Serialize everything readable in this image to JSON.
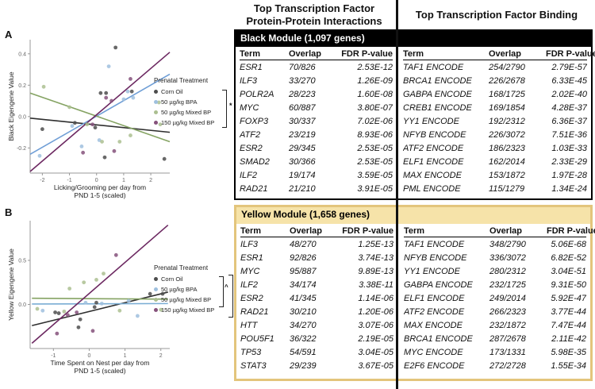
{
  "panels": [
    {
      "label": "A"
    },
    {
      "label": "B"
    }
  ],
  "section_headers": {
    "ppi_line1": "Top Transcription Factor",
    "ppi_line2": "Protein-Protein Interactions",
    "binding": "Top Transcription Factor Binding"
  },
  "modules": [
    {
      "title": "Black Module (1,097 genes)",
      "accent_color": "#000000",
      "ppi": {
        "columns": [
          "Term",
          "Overlap",
          "FDR P-value"
        ],
        "rows": [
          [
            "ESR1",
            "70/826",
            "2.53E-12"
          ],
          [
            "ILF3",
            "33/270",
            "1.26E-09"
          ],
          [
            "POLR2A",
            "28/223",
            "1.60E-08"
          ],
          [
            "MYC",
            "60/887",
            "3.80E-07"
          ],
          [
            "FOXP3",
            "30/337",
            "7.02E-06"
          ],
          [
            "ATF2",
            "23/219",
            "8.93E-06"
          ],
          [
            "ESR2",
            "29/345",
            "2.53E-05"
          ],
          [
            "SMAD2",
            "30/366",
            "2.53E-05"
          ],
          [
            "ILF2",
            "19/174",
            "3.59E-05"
          ],
          [
            "RAD21",
            "21/210",
            "3.91E-05"
          ]
        ]
      },
      "binding": {
        "columns": [
          "Term",
          "Overlap",
          "FDR P-value"
        ],
        "rows": [
          [
            "TAF1 ENCODE",
            "254/2790",
            "2.79E-57"
          ],
          [
            "BRCA1 ENCODE",
            "226/2678",
            "6.33E-45"
          ],
          [
            "GABPA ENCODE",
            "168/1725",
            "2.02E-40"
          ],
          [
            "CREB1 ENCODE",
            "169/1854",
            "4.28E-37"
          ],
          [
            "YY1 ENCODE",
            "192/2312",
            "6.36E-37"
          ],
          [
            "NFYB ENCODE",
            "226/3072",
            "7.51E-36"
          ],
          [
            "ATF2 ENCODE",
            "186/2323",
            "1.03E-33"
          ],
          [
            "ELF1 ENCODE",
            "162/2014",
            "2.33E-29"
          ],
          [
            "MAX ENCODE",
            "153/1872",
            "1.97E-28"
          ],
          [
            "PML ENCODE",
            "115/1279",
            "1.34E-24"
          ]
        ]
      }
    },
    {
      "title": "Yellow Module (1,658 genes)",
      "accent_color": "#e3c57c",
      "header_bg": "#f6e3a9",
      "ppi": {
        "columns": [
          "Term",
          "Overlap",
          "FDR P-value"
        ],
        "rows": [
          [
            "ILF3",
            "48/270",
            "1.25E-13"
          ],
          [
            "ESR1",
            "92/826",
            "3.74E-13"
          ],
          [
            "MYC",
            "95/887",
            "9.89E-13"
          ],
          [
            "ILF2",
            "34/174",
            "3.38E-11"
          ],
          [
            "ESR2",
            "41/345",
            "1.14E-06"
          ],
          [
            "RAD21",
            "30/210",
            "1.20E-06"
          ],
          [
            "HTT",
            "34/270",
            "3.07E-06"
          ],
          [
            "POU5F1",
            "36/322",
            "2.19E-05"
          ],
          [
            "TP53",
            "54/591",
            "3.04E-05"
          ],
          [
            "STAT3",
            "29/239",
            "3.67E-05"
          ]
        ]
      },
      "binding": {
        "columns": [
          "Term",
          "Overlap",
          "FDR P-value"
        ],
        "rows": [
          [
            "TAF1 ENCODE",
            "348/2790",
            "5.06E-68"
          ],
          [
            "NFYB ENCODE",
            "336/3072",
            "6.82E-52"
          ],
          [
            "YY1 ENCODE",
            "280/2312",
            "3.04E-51"
          ],
          [
            "GABPA ENCODE",
            "232/1725",
            "9.31E-50"
          ],
          [
            "ELF1 ENCODE",
            "249/2014",
            "5.92E-47"
          ],
          [
            "ATF2 ENCODE",
            "266/2323",
            "3.77E-44"
          ],
          [
            "MAX ENCODE",
            "232/1872",
            "7.47E-44"
          ],
          [
            "BRCA1 ENCODE",
            "287/2678",
            "2.11E-42"
          ],
          [
            "MYC ENCODE",
            "173/1331",
            "5.98E-35"
          ],
          [
            "E2F6 ENCODE",
            "272/2728",
            "1.55E-34"
          ]
        ]
      }
    }
  ],
  "chart_data": [
    {
      "type": "scatter",
      "panel": "A",
      "ylabel": "Black Eigengene Value",
      "xlabel_lines": [
        "Licking/Grooming per day from",
        "PND 1-5 (scaled)"
      ],
      "xlim": [
        -2.45,
        2.7
      ],
      "ylim": [
        -0.36,
        0.49
      ],
      "xticks": [
        {
          "v": -2,
          "t": "-2"
        },
        {
          "v": -1,
          "t": "-1"
        },
        {
          "v": 0,
          "t": "0"
        },
        {
          "v": 1,
          "t": "1"
        },
        {
          "v": 2,
          "t": "2"
        }
      ],
      "yticks": [
        {
          "v": -0.2,
          "t": "-0.2"
        },
        {
          "v": 0,
          "t": "0.0"
        },
        {
          "v": 0.2,
          "t": "0.2"
        },
        {
          "v": 0.4,
          "t": "0.4"
        }
      ],
      "legend_title": "Prenatal Treatment",
      "legend_position": "right",
      "grid": false,
      "series": [
        {
          "name": "Corn Oil",
          "color": "#4d4d4d",
          "line_color": "#2e2e2e",
          "trend": [
            [
              -2.45,
              -0.01
            ],
            [
              2.7,
              -0.1
            ]
          ],
          "points": [
            [
              0.7,
              0.44
            ],
            [
              0.35,
              0.15
            ],
            [
              0.15,
              0.15
            ],
            [
              -0.05,
              -0.07
            ],
            [
              -0.8,
              -0.04
            ],
            [
              -2.0,
              -0.08
            ],
            [
              0.3,
              -0.26
            ],
            [
              1.3,
              0.16
            ],
            [
              2.5,
              -0.27
            ]
          ]
        },
        {
          "name": "50 µg/kg BPA",
          "color": "#9fc0de",
          "line_color": "#6f9ed6",
          "trend": [
            [
              -2.45,
              -0.24
            ],
            [
              2.7,
              0.27
            ]
          ],
          "points": [
            [
              0.45,
              0.32
            ],
            [
              1.0,
              0.11
            ],
            [
              1.15,
              0.16
            ],
            [
              -0.9,
              -0.06
            ],
            [
              -0.55,
              -0.19
            ],
            [
              0.1,
              -0.15
            ],
            [
              -2.1,
              -0.25
            ],
            [
              1.35,
              0.12
            ]
          ]
        },
        {
          "name": "50 µg/kg Mixed BP",
          "color": "#abbf90",
          "line_color": "#85a363",
          "trend": [
            [
              -2.45,
              0.15
            ],
            [
              2.7,
              -0.16
            ]
          ],
          "points": [
            [
              -1.95,
              0.19
            ],
            [
              -1.0,
              0.06
            ],
            [
              -0.35,
              -0.05
            ],
            [
              0.2,
              -0.16
            ],
            [
              1.25,
              -0.12
            ],
            [
              2.3,
              0.09
            ],
            [
              2.35,
              -0.05
            ],
            [
              0.85,
              -0.16
            ]
          ]
        },
        {
          "name": "150 µg/kg Mixed BP",
          "color": "#85517b",
          "line_color": "#6c2861",
          "trend": [
            [
              -2.45,
              -0.35
            ],
            [
              2.7,
              0.41
            ]
          ],
          "points": [
            [
              1.25,
              0.24
            ],
            [
              0.55,
              0.1
            ],
            [
              0.35,
              0.12
            ],
            [
              -0.5,
              -0.23
            ],
            [
              0.65,
              -0.22
            ],
            [
              -0.15,
              -0.05
            ]
          ]
        }
      ],
      "annotations": [
        {
          "span": [
            0,
            3
          ],
          "label": "*"
        }
      ]
    },
    {
      "type": "scatter",
      "panel": "B",
      "ylabel": "Yellow Eigengene Value",
      "xlabel_lines": [
        "Time Spent on Nest per day from",
        "PND 1-5 (scaled)"
      ],
      "xlim": [
        -1.65,
        2.25
      ],
      "ylim": [
        -0.5,
        0.95
      ],
      "xticks": [
        {
          "v": -1,
          "t": "-1"
        },
        {
          "v": 0,
          "t": "0"
        },
        {
          "v": 1,
          "t": "1"
        },
        {
          "v": 2,
          "t": "2"
        }
      ],
      "yticks": [
        {
          "v": 0,
          "t": "0.0"
        },
        {
          "v": 0.5,
          "t": "0.5"
        }
      ],
      "legend_title": "Prenatal Treatment",
      "legend_position": "right",
      "grid": false,
      "series": [
        {
          "name": "Corn Oil",
          "color": "#4d4d4d",
          "line_color": "#2e2e2e",
          "trend": [
            [
              -1.6,
              -0.24
            ],
            [
              2.2,
              0.14
            ]
          ],
          "points": [
            [
              -0.95,
              -0.09
            ],
            [
              -0.85,
              -0.1
            ],
            [
              -0.25,
              -0.17
            ],
            [
              0.15,
              -0.03
            ],
            [
              0.2,
              0.02
            ],
            [
              1.7,
              0.12
            ],
            [
              2.05,
              0.12
            ],
            [
              -0.3,
              -0.26
            ]
          ]
        },
        {
          "name": "50 µg/kg BPA",
          "color": "#9fc0de",
          "line_color": "#7aadd4",
          "trend": [
            [
              -1.6,
              0.005
            ],
            [
              2.2,
              0.01
            ]
          ],
          "points": [
            [
              -1.3,
              -0.07
            ],
            [
              -0.1,
              0.02
            ],
            [
              0.35,
              0.01
            ],
            [
              1.1,
              0.04
            ],
            [
              1.35,
              -0.13
            ]
          ]
        },
        {
          "name": "50 µg/kg Mixed BP",
          "color": "#abbf90",
          "line_color": "#85a363",
          "trend": [
            [
              -1.6,
              0.07
            ],
            [
              2.2,
              0.06
            ]
          ],
          "points": [
            [
              -1.45,
              -0.05
            ],
            [
              -0.55,
              0.18
            ],
            [
              -0.15,
              0.25
            ],
            [
              0.2,
              0.28
            ],
            [
              0.4,
              0.35
            ],
            [
              0.85,
              -0.07
            ],
            [
              2.0,
              -0.06
            ],
            [
              -0.7,
              -0.08
            ]
          ]
        },
        {
          "name": "150 µg/kg Mixed BP",
          "color": "#85517b",
          "line_color": "#6c2861",
          "trend": [
            [
              -1.6,
              -0.44
            ],
            [
              2.2,
              0.9
            ]
          ],
          "points": [
            [
              0.75,
              0.56
            ],
            [
              -0.35,
              -0.09
            ],
            [
              -0.6,
              -0.12
            ],
            [
              -0.9,
              -0.33
            ],
            [
              0.1,
              -0.3
            ]
          ]
        }
      ],
      "annotations": [
        {
          "span": [
            0,
            2
          ],
          "label": "^"
        },
        {
          "span": [
            0,
            3
          ],
          "label": "*, *"
        }
      ]
    }
  ]
}
